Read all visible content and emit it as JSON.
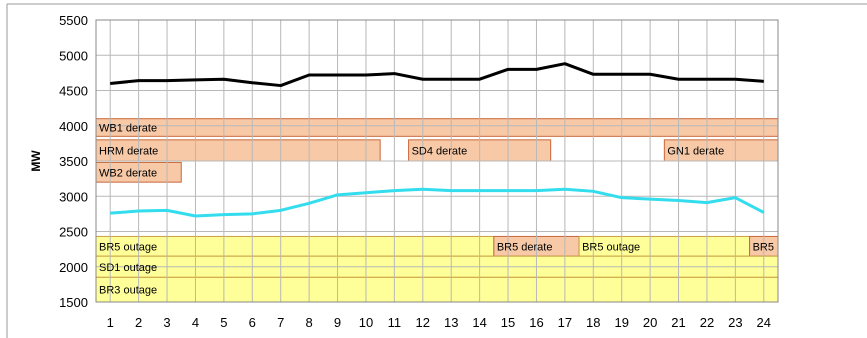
{
  "chart_data": {
    "type": "line",
    "ylabel": "MW",
    "ylim": [
      1500,
      5500
    ],
    "yticks": [
      1500,
      2000,
      2500,
      3000,
      3500,
      4000,
      4500,
      5000,
      5500
    ],
    "x": [
      1,
      2,
      3,
      4,
      5,
      6,
      7,
      8,
      9,
      10,
      11,
      12,
      13,
      14,
      15,
      16,
      17,
      18,
      19,
      20,
      21,
      22,
      23,
      24
    ],
    "xtick_labels": [
      "1",
      "2",
      "3",
      "4",
      "5",
      "6",
      "7",
      "8",
      "9",
      "10",
      "11",
      "12",
      "13",
      "14",
      "15",
      "16",
      "17",
      "18",
      "19",
      "20",
      "21",
      "22",
      "23",
      "24"
    ],
    "grid": true,
    "series": [
      {
        "color": "#000000",
        "values": [
          4600,
          4640,
          4640,
          4650,
          4660,
          4610,
          4570,
          4720,
          4720,
          4720,
          4740,
          4660,
          4660,
          4660,
          4800,
          4800,
          4880,
          4730,
          4730,
          4730,
          4660,
          4660,
          4660,
          4630
        ]
      },
      {
        "color": "#33ddee",
        "values": [
          2760,
          2790,
          2800,
          2720,
          2740,
          2750,
          2800,
          2900,
          3020,
          3050,
          3080,
          3100,
          3080,
          3080,
          3080,
          3080,
          3100,
          3070,
          2980,
          2960,
          2940,
          2910,
          2980,
          2770
        ]
      }
    ],
    "bands": [
      {
        "label": "WB1 derate",
        "x_start": 0.5,
        "x_end": 24.5,
        "y_low": 3850,
        "y_high": 4100,
        "color": "#f8c9a6",
        "edge": "#c8673a"
      },
      {
        "label": "HRM derate",
        "x_start": 0.5,
        "x_end": 10.5,
        "y_low": 3500,
        "y_high": 3800,
        "color": "#f8c9a6",
        "edge": "#c8673a"
      },
      {
        "label": "SD4 derate",
        "x_start": 11.5,
        "x_end": 16.5,
        "y_low": 3500,
        "y_high": 3800,
        "color": "#f8c9a6",
        "edge": "#c8673a"
      },
      {
        "label": "GN1 derate",
        "x_start": 20.5,
        "x_end": 24.5,
        "y_low": 3500,
        "y_high": 3800,
        "color": "#f8c9a6",
        "edge": "#c8673a"
      },
      {
        "label": "WB2 derate",
        "x_start": 0.5,
        "x_end": 3.5,
        "y_low": 3200,
        "y_high": 3480,
        "color": "#f8c9a6",
        "edge": "#c8673a"
      },
      {
        "label": "BR5 outage",
        "x_start": 0.5,
        "x_end": 14.5,
        "y_low": 2150,
        "y_high": 2430,
        "color": "#ffff99",
        "edge": "#c8a040"
      },
      {
        "label": "BR5 derate",
        "x_start": 14.5,
        "x_end": 17.5,
        "y_low": 2150,
        "y_high": 2430,
        "color": "#f8c9a6",
        "edge": "#c8673a"
      },
      {
        "label": "BR5 outage",
        "x_start": 17.5,
        "x_end": 23.5,
        "y_low": 2150,
        "y_high": 2430,
        "color": "#ffff99",
        "edge": "#c8a040"
      },
      {
        "label": "BR5",
        "x_start": 23.5,
        "x_end": 24.5,
        "y_low": 2150,
        "y_high": 2430,
        "color": "#f8c9a6",
        "edge": "#c8673a"
      },
      {
        "label": "SD1 outage",
        "x_start": 0.5,
        "x_end": 24.5,
        "y_low": 1850,
        "y_high": 2150,
        "color": "#ffff99",
        "edge": "#c8a040"
      },
      {
        "label": "BR3 outage",
        "x_start": 0.5,
        "x_end": 24.5,
        "y_low": 1500,
        "y_high": 1850,
        "color": "#ffff99",
        "edge": "#c8a040"
      }
    ]
  }
}
